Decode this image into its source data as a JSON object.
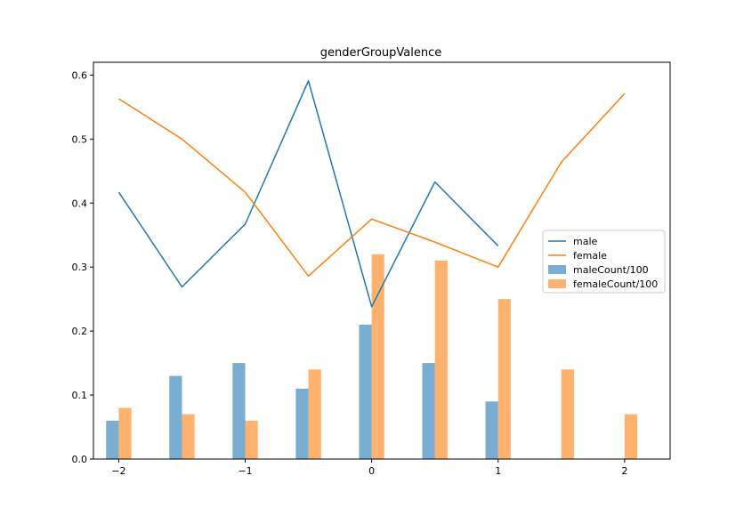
{
  "chart_data": {
    "type": "bar",
    "title": "genderGroupValence",
    "xlabel": "",
    "ylabel": "",
    "xlim": [
      -2.2,
      2.36
    ],
    "ylim": [
      0.0,
      0.62
    ],
    "x_ticks": [
      -2,
      -1,
      0,
      1,
      2
    ],
    "x_tick_labels": [
      "−2",
      "−1",
      "0",
      "1",
      "2"
    ],
    "y_ticks": [
      0.0,
      0.1,
      0.2,
      0.3,
      0.4,
      0.5,
      0.6
    ],
    "y_tick_labels": [
      "0.0",
      "0.1",
      "0.2",
      "0.3",
      "0.4",
      "0.5",
      "0.6"
    ],
    "grid": false,
    "legend_position": "center-right",
    "line_series": [
      {
        "name": "male",
        "color": "#1f77b4",
        "x": [
          -2,
          -1.5,
          -1,
          -0.5,
          0,
          0.5,
          1
        ],
        "y": [
          0.417,
          0.269,
          0.367,
          0.591,
          0.238,
          0.433,
          0.333
        ]
      },
      {
        "name": "female",
        "color": "#ff7f0e",
        "x": [
          -2,
          -1.5,
          -1,
          -0.5,
          0,
          0.5,
          1,
          1.5,
          2
        ],
        "y": [
          0.563,
          0.5,
          0.417,
          0.286,
          0.375,
          0.339,
          0.3,
          0.464,
          0.571
        ]
      }
    ],
    "bar_series": [
      {
        "name": "maleCount/100",
        "color": "#1f77b4",
        "offset": -0.05,
        "x": [
          -2,
          -1.5,
          -1,
          -0.5,
          0,
          0.5,
          1,
          1.5,
          2
        ],
        "values": [
          0.06,
          0.13,
          0.15,
          0.11,
          0.21,
          0.15,
          0.09,
          0.0,
          0.0
        ]
      },
      {
        "name": "femaleCount/100",
        "color": "#ff7f0e",
        "offset": 0.05,
        "x": [
          -2,
          -1.5,
          -1,
          -0.5,
          0,
          0.5,
          1,
          1.5,
          2
        ],
        "values": [
          0.08,
          0.07,
          0.06,
          0.14,
          0.32,
          0.31,
          0.25,
          0.14,
          0.07
        ]
      }
    ],
    "bar_width": 0.1,
    "bar_opacity": 0.6
  }
}
